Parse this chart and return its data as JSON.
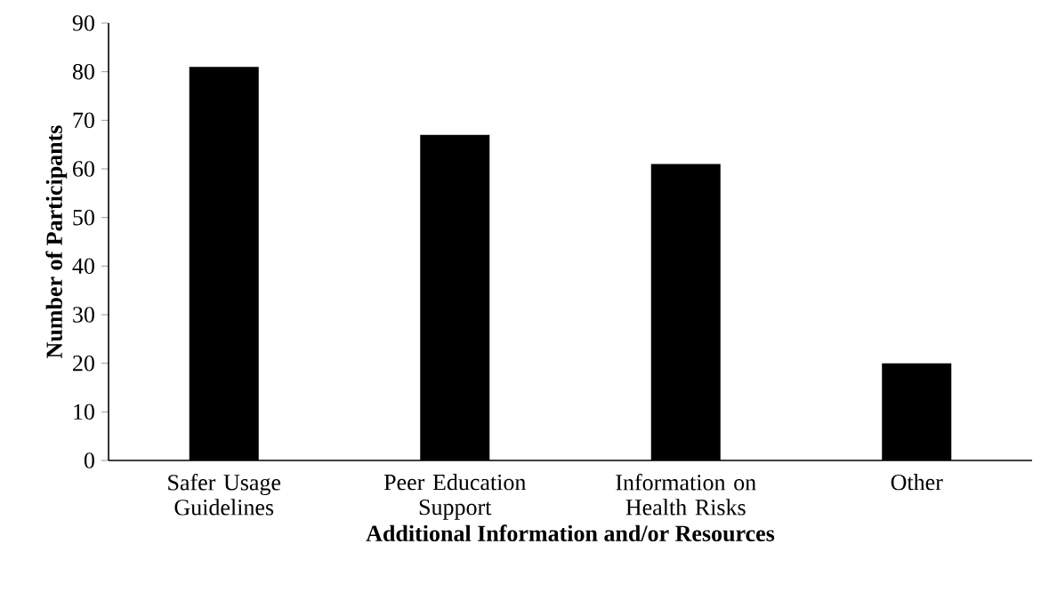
{
  "chart_data": {
    "type": "bar",
    "xlabel": "Additional Information and/or Resources",
    "ylabel": "Number of Participants",
    "categories": [
      "Safer Usage Guidelines",
      "Peer Education Support",
      "Information on Health Risks",
      "Other"
    ],
    "values": [
      81,
      67,
      61,
      20
    ],
    "color": "#000000",
    "ylim": [
      0,
      90
    ],
    "yticks": [
      0,
      10,
      20,
      30,
      40,
      50,
      60,
      70,
      80,
      90
    ]
  }
}
